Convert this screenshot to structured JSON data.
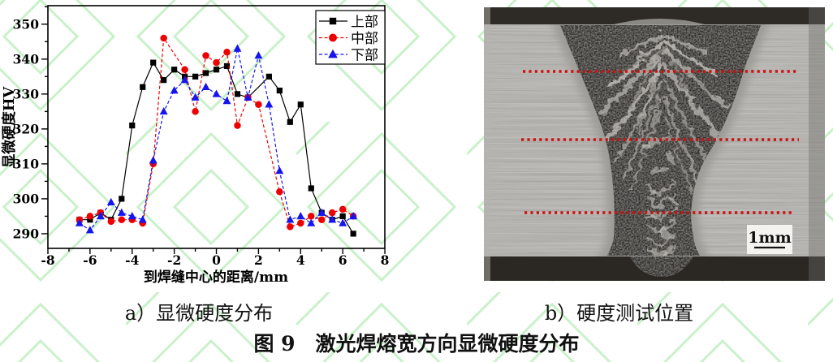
{
  "figure": {
    "caption_a": "a）显微硬度分布",
    "caption_b": "b）硬度测试位置",
    "caption_main": "图 9　激光焊熔宽方向显微硬度分布"
  },
  "chart_data": {
    "type": "line",
    "xlabel": "到焊缝中心的距离/mm",
    "ylabel": "显微硬度HV",
    "xlim": [
      -8,
      8
    ],
    "ylim": [
      286,
      355
    ],
    "x_ticks": [
      -8,
      -6,
      -4,
      -2,
      0,
      2,
      4,
      6,
      8
    ],
    "y_ticks": [
      290,
      300,
      310,
      320,
      330,
      340,
      350
    ],
    "grid": false,
    "legend_position": "top-right",
    "series": [
      {
        "name": "上部",
        "color": "#000000",
        "marker": "square",
        "line": "solid",
        "points": [
          [
            -6.5,
            294
          ],
          [
            -6,
            294
          ],
          [
            -5.5,
            296
          ],
          [
            -5,
            294
          ],
          [
            -4.5,
            300
          ],
          [
            -4,
            321
          ],
          [
            -3.5,
            332
          ],
          [
            -3,
            339
          ],
          [
            -2.5,
            334
          ],
          [
            -2,
            337
          ],
          [
            -1.5,
            335
          ],
          [
            -1,
            335
          ],
          [
            -0.5,
            336
          ],
          [
            0,
            337
          ],
          [
            0.5,
            338
          ],
          [
            1,
            330
          ],
          [
            1.5,
            329
          ],
          [
            2.5,
            335
          ],
          [
            3,
            331
          ],
          [
            3.5,
            322
          ],
          [
            4,
            327
          ],
          [
            4.5,
            303
          ],
          [
            5,
            296
          ],
          [
            5.5,
            294
          ],
          [
            6,
            295
          ],
          [
            6.5,
            290
          ]
        ]
      },
      {
        "name": "中部",
        "color": "#ee0000",
        "marker": "circle",
        "line": "dash",
        "points": [
          [
            -6.5,
            294
          ],
          [
            -6,
            295
          ],
          [
            -5.5,
            296
          ],
          [
            -5,
            293.5
          ],
          [
            -4.5,
            294
          ],
          [
            -4,
            294
          ],
          [
            -3.5,
            293
          ],
          [
            -3,
            310
          ],
          [
            -2.5,
            346
          ],
          [
            -1.5,
            337
          ],
          [
            -1,
            325
          ],
          [
            -0.5,
            341
          ],
          [
            0,
            339
          ],
          [
            0.5,
            342
          ],
          [
            1,
            321
          ],
          [
            1.5,
            329
          ],
          [
            2,
            327
          ],
          [
            3,
            302
          ],
          [
            3.5,
            292
          ],
          [
            4,
            293
          ],
          [
            4.5,
            295
          ],
          [
            5,
            294
          ],
          [
            5.5,
            296
          ],
          [
            6,
            297
          ],
          [
            6.5,
            295
          ]
        ]
      },
      {
        "name": "下部",
        "color": "#1515ee",
        "marker": "triangle",
        "line": "dash",
        "points": [
          [
            -6.5,
            293
          ],
          [
            -6,
            291
          ],
          [
            -5.5,
            295
          ],
          [
            -5,
            299
          ],
          [
            -4.5,
            296
          ],
          [
            -4,
            295
          ],
          [
            -3.5,
            294
          ],
          [
            -3,
            311
          ],
          [
            -2.5,
            325
          ],
          [
            -2,
            331
          ],
          [
            -1.5,
            334
          ],
          [
            -1,
            329
          ],
          [
            -0.5,
            332
          ],
          [
            0,
            330
          ],
          [
            0.5,
            328
          ],
          [
            1,
            343
          ],
          [
            1.5,
            329
          ],
          [
            2,
            341
          ],
          [
            2.5,
            327
          ],
          [
            3,
            308
          ],
          [
            3.5,
            294
          ],
          [
            4,
            295
          ],
          [
            4.5,
            293
          ],
          [
            5,
            296
          ],
          [
            5.5,
            294
          ],
          [
            6,
            293
          ],
          [
            6.5,
            295
          ]
        ]
      }
    ]
  },
  "micrograph": {
    "scale_label": "1mm",
    "dotted_line_color": "#cc1111",
    "dotted_lines_count": 3
  },
  "watermark_color": "#bfefbf"
}
